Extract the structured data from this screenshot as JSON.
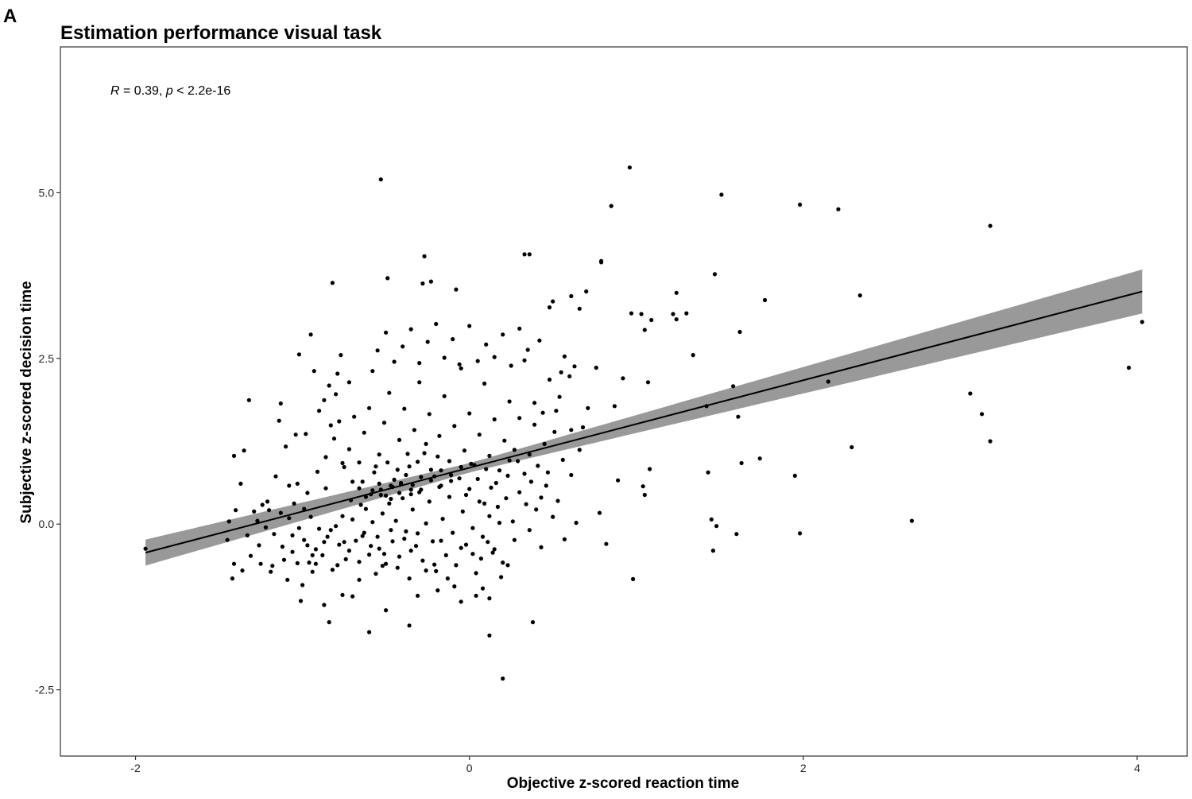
{
  "panel_label": "A",
  "chart_data": {
    "type": "scatter",
    "title": "Estimation performance visual task",
    "xlabel": "Objective z-scored reaction time",
    "ylabel": "Subjective z-scored decision time",
    "xlim": [
      -2.45,
      4.3
    ],
    "ylim": [
      -3.5,
      7.2
    ],
    "x_ticks": [
      -2,
      0,
      2,
      4
    ],
    "x_tick_labels": [
      "-2",
      "0",
      "2",
      "4"
    ],
    "y_ticks": [
      -2.5,
      0,
      2.5,
      5
    ],
    "y_tick_labels": [
      "-2.5",
      "0.0",
      "2.5",
      "5.0"
    ],
    "annotation": {
      "r_symbol": "R",
      "r_text": " = 0.39, ",
      "p_symbol": "p",
      "p_text": " < 2.2e-16"
    },
    "grid": false,
    "regression": {
      "x_range": [
        -1.94,
        4.03
      ],
      "intercept": 0.85,
      "slope": 0.66,
      "ci_halfwidth_at_mean": 0.07,
      "ci_growth": 0.065,
      "fill_color": "#999999",
      "line_color": "#000000"
    },
    "point_color": "#000000",
    "points": [
      [
        -1.94,
        -0.37
      ],
      [
        -0.53,
        5.2
      ],
      [
        0.96,
        5.38
      ],
      [
        0.85,
        4.8
      ],
      [
        1.51,
        4.97
      ],
      [
        1.98,
        4.82
      ],
      [
        2.21,
        4.75
      ],
      [
        3.12,
        4.5
      ],
      [
        -0.27,
        4.04
      ],
      [
        0.33,
        4.07
      ],
      [
        0.36,
        4.07
      ],
      [
        0.79,
        3.95
      ],
      [
        0.79,
        3.97
      ],
      [
        -0.82,
        3.64
      ],
      [
        -0.49,
        3.71
      ],
      [
        -0.28,
        3.63
      ],
      [
        -0.23,
        3.66
      ],
      [
        -0.08,
        3.54
      ],
      [
        1.24,
        3.49
      ],
      [
        1.47,
        3.77
      ],
      [
        1.77,
        3.38
      ],
      [
        2.34,
        3.45
      ],
      [
        4.03,
        3.05
      ],
      [
        3.95,
        2.36
      ],
      [
        0.48,
        3.27
      ],
      [
        0.5,
        3.36
      ],
      [
        0.61,
        3.44
      ],
      [
        0.7,
        3.51
      ],
      [
        0.66,
        3.25
      ],
      [
        0.97,
        3.18
      ],
      [
        1.03,
        3.17
      ],
      [
        1.22,
        3.17
      ],
      [
        1.24,
        3.09
      ],
      [
        1.3,
        3.18
      ],
      [
        1.09,
        3.08
      ],
      [
        1.05,
        2.93
      ],
      [
        1.62,
        2.9
      ],
      [
        1.34,
        2.55
      ],
      [
        1.58,
        2.08
      ],
      [
        2.15,
        2.15
      ],
      [
        1.61,
        1.62
      ],
      [
        1.63,
        0.92
      ],
      [
        1.74,
        0.99
      ],
      [
        1.42,
        1.78
      ],
      [
        1.43,
        0.78
      ],
      [
        1.45,
        0.07
      ],
      [
        1.48,
        -0.03
      ],
      [
        1.46,
        -0.4
      ],
      [
        1.6,
        -0.15
      ],
      [
        1.95,
        0.73
      ],
      [
        1.98,
        -0.14
      ],
      [
        2.29,
        1.16
      ],
      [
        2.65,
        0.05
      ],
      [
        3.0,
        1.97
      ],
      [
        3.07,
        1.66
      ],
      [
        3.12,
        1.25
      ],
      [
        0.98,
        -0.83
      ],
      [
        0.82,
        -0.3
      ],
      [
        0.78,
        0.17
      ],
      [
        0.89,
        0.66
      ],
      [
        0.87,
        1.78
      ],
      [
        1.04,
        0.57
      ],
      [
        1.05,
        0.44
      ],
      [
        1.08,
        0.83
      ],
      [
        0.92,
        2.2
      ],
      [
        1.07,
        2.14
      ],
      [
        0.76,
        2.36
      ],
      [
        0.6,
        2.23
      ],
      [
        0.55,
        2.29
      ],
      [
        0.63,
        2.38
      ],
      [
        -1.42,
        -0.82
      ],
      [
        -1.41,
        -0.6
      ],
      [
        -1.44,
        0.04
      ],
      [
        -1.45,
        -0.24
      ],
      [
        -1.4,
        0.21
      ],
      [
        -1.37,
        0.61
      ],
      [
        -1.41,
        1.03
      ],
      [
        -1.35,
        1.11
      ],
      [
        -1.32,
        1.87
      ],
      [
        -1.2,
        0.21
      ],
      [
        -1.14,
        1.56
      ],
      [
        -1.13,
        1.82
      ],
      [
        -1.1,
        1.17
      ],
      [
        -1.05,
        0.31
      ],
      [
        -1.04,
        1.35
      ],
      [
        -1.02,
        2.56
      ],
      [
        -0.98,
        1.36
      ],
      [
        -0.95,
        2.86
      ],
      [
        -0.93,
        2.31
      ],
      [
        -1.0,
        -0.92
      ],
      [
        -1.01,
        -1.16
      ],
      [
        -0.86,
        0.54
      ],
      [
        -0.86,
        1.01
      ],
      [
        -0.83,
        1.49
      ],
      [
        -0.8,
        1.96
      ],
      [
        -0.79,
        2.27
      ],
      [
        -0.77,
        2.55
      ],
      [
        -0.72,
        2.14
      ],
      [
        -0.84,
        -1.48
      ],
      [
        -0.87,
        -1.22
      ],
      [
        -0.76,
        -1.07
      ],
      [
        -0.7,
        -1.09
      ],
      [
        -0.6,
        -1.63
      ],
      [
        -0.52,
        -0.63
      ],
      [
        -0.5,
        -1.3
      ],
      [
        -0.36,
        -1.53
      ],
      [
        -0.31,
        -1.08
      ],
      [
        -0.26,
        -0.7
      ],
      [
        -0.19,
        -1.0
      ],
      [
        -0.09,
        -0.94
      ],
      [
        -0.05,
        -1.17
      ],
      [
        0.04,
        -1.08
      ],
      [
        0.08,
        -0.97
      ],
      [
        0.12,
        -1.12
      ],
      [
        0.12,
        -1.68
      ],
      [
        0.2,
        -2.33
      ],
      [
        0.38,
        -1.48
      ],
      [
        -1.31,
        -0.48
      ],
      [
        -1.25,
        -0.6
      ],
      [
        -1.19,
        -0.72
      ],
      [
        -1.12,
        -0.34
      ],
      [
        -1.09,
        -0.84
      ],
      [
        -1.06,
        -0.17
      ],
      [
        -0.99,
        -0.24
      ],
      [
        -0.96,
        -0.58
      ],
      [
        -0.94,
        -0.72
      ],
      [
        -0.92,
        -0.38
      ],
      [
        -0.9,
        -0.07
      ],
      [
        -0.88,
        -0.47
      ],
      [
        -0.85,
        -0.19
      ],
      [
        -0.82,
        -0.69
      ],
      [
        -0.8,
        -0.03
      ],
      [
        -0.78,
        -0.31
      ],
      [
        -0.76,
        0.12
      ],
      [
        -0.74,
        -0.53
      ],
      [
        -0.72,
        -0.4
      ],
      [
        -0.7,
        0.07
      ],
      [
        -0.68,
        -0.25
      ],
      [
        -0.66,
        -0.84
      ],
      [
        -0.64,
        -0.18
      ],
      [
        -0.62,
        0.23
      ],
      [
        -0.6,
        -0.46
      ],
      [
        -0.58,
        0.03
      ],
      [
        -0.56,
        -0.75
      ],
      [
        -0.54,
        -0.37
      ],
      [
        -0.52,
        0.16
      ],
      [
        -0.5,
        -0.6
      ],
      [
        -0.48,
        0.31
      ],
      [
        -0.46,
        -0.26
      ],
      [
        -0.44,
        0.05
      ],
      [
        -0.42,
        -0.49
      ],
      [
        -0.4,
        0.39
      ],
      [
        -0.38,
        -0.11
      ],
      [
        -0.36,
        -0.82
      ],
      [
        -0.34,
        0.22
      ],
      [
        -0.32,
        -0.33
      ],
      [
        -0.3,
        0.48
      ],
      [
        -0.28,
        -0.55
      ],
      [
        -0.26,
        0.01
      ],
      [
        -0.24,
        0.34
      ],
      [
        -0.22,
        -0.26
      ],
      [
        -0.2,
        -0.71
      ],
      [
        -0.18,
        0.56
      ],
      [
        -0.16,
        0.08
      ],
      [
        -0.14,
        -0.47
      ],
      [
        -0.12,
        0.41
      ],
      [
        -0.1,
        -0.13
      ],
      [
        -0.08,
        -0.62
      ],
      [
        -0.06,
        0.69
      ],
      [
        -0.04,
        0.19
      ],
      [
        -0.02,
        -0.31
      ],
      [
        0.0,
        0.53
      ],
      [
        0.02,
        -0.06
      ],
      [
        0.04,
        -0.74
      ],
      [
        0.06,
        0.34
      ],
      [
        0.08,
        -0.19
      ],
      [
        0.1,
        0.83
      ],
      [
        0.12,
        0.12
      ],
      [
        0.14,
        -0.43
      ],
      [
        0.16,
        0.62
      ],
      [
        0.18,
        0.02
      ],
      [
        0.2,
        -0.58
      ],
      [
        0.22,
        0.39
      ],
      [
        0.24,
        0.96
      ],
      [
        0.27,
        -0.24
      ],
      [
        0.3,
        0.48
      ],
      [
        0.33,
        0.76
      ],
      [
        0.36,
        -0.09
      ],
      [
        0.4,
        0.22
      ],
      [
        0.43,
        -0.35
      ],
      [
        0.46,
        0.58
      ],
      [
        0.5,
        0.11
      ],
      [
        0.53,
        0.35
      ],
      [
        0.57,
        -0.23
      ],
      [
        0.61,
        0.74
      ],
      [
        0.64,
        0.02
      ],
      [
        0.68,
        1.46
      ],
      [
        -0.9,
        1.71
      ],
      [
        -0.87,
        1.87
      ],
      [
        -0.84,
        2.09
      ],
      [
        -0.81,
        1.29
      ],
      [
        -0.78,
        1.55
      ],
      [
        -0.75,
        0.86
      ],
      [
        -0.72,
        1.13
      ],
      [
        -0.69,
        1.62
      ],
      [
        -0.66,
        0.93
      ],
      [
        -0.63,
        1.38
      ],
      [
        -0.6,
        1.75
      ],
      [
        -0.57,
        0.78
      ],
      [
        -0.54,
        1.05
      ],
      [
        -0.51,
        1.53
      ],
      [
        -0.48,
        1.98
      ],
      [
        -0.45,
        0.67
      ],
      [
        -0.42,
        1.27
      ],
      [
        -0.39,
        1.74
      ],
      [
        -0.36,
        0.87
      ],
      [
        -0.33,
        1.42
      ],
      [
        -0.3,
        2.14
      ],
      [
        -0.27,
        1.07
      ],
      [
        -0.24,
        1.66
      ],
      [
        -0.21,
        0.72
      ],
      [
        -0.18,
        1.33
      ],
      [
        -0.15,
        1.93
      ],
      [
        -0.12,
        0.95
      ],
      [
        -0.09,
        1.48
      ],
      [
        -0.06,
        2.41
      ],
      [
        -0.03,
        1.11
      ],
      [
        0.0,
        1.67
      ],
      [
        0.03,
        0.89
      ],
      [
        0.06,
        1.35
      ],
      [
        0.09,
        2.12
      ],
      [
        0.12,
        1.03
      ],
      [
        0.15,
        1.58
      ],
      [
        0.18,
        0.81
      ],
      [
        0.21,
        1.26
      ],
      [
        0.24,
        1.85
      ],
      [
        0.27,
        1.12
      ],
      [
        0.3,
        1.6
      ],
      [
        0.33,
        2.47
      ],
      [
        0.36,
        1.05
      ],
      [
        0.39,
        1.83
      ],
      [
        0.42,
        2.77
      ],
      [
        0.45,
        1.21
      ],
      [
        0.48,
        2.18
      ],
      [
        0.51,
        1.39
      ],
      [
        0.54,
        1.92
      ],
      [
        0.57,
        2.53
      ],
      [
        -0.58,
        2.31
      ],
      [
        -0.55,
        2.62
      ],
      [
        -0.5,
        2.89
      ],
      [
        -0.45,
        2.45
      ],
      [
        -0.4,
        2.68
      ],
      [
        -0.35,
        2.94
      ],
      [
        -0.3,
        2.43
      ],
      [
        -0.25,
        2.75
      ],
      [
        -0.2,
        3.02
      ],
      [
        -0.15,
        2.51
      ],
      [
        -0.1,
        2.79
      ],
      [
        -0.05,
        2.35
      ],
      [
        0.0,
        2.99
      ],
      [
        0.05,
        2.46
      ],
      [
        0.1,
        2.71
      ],
      [
        0.15,
        2.52
      ],
      [
        0.2,
        2.86
      ],
      [
        0.25,
        2.39
      ],
      [
        0.3,
        2.95
      ],
      [
        0.35,
        2.63
      ],
      [
        -0.53,
        0.44
      ],
      [
        -0.47,
        0.58
      ],
      [
        -0.41,
        0.62
      ],
      [
        -0.35,
        0.52
      ],
      [
        -0.29,
        0.71
      ],
      [
        -0.23,
        0.66
      ],
      [
        -0.17,
        0.81
      ],
      [
        -0.11,
        0.74
      ],
      [
        -0.05,
        0.86
      ],
      [
        0.01,
        0.91
      ],
      [
        -0.65,
        0.29
      ],
      [
        -0.59,
        0.45
      ],
      [
        -0.53,
        0.52
      ],
      [
        -0.47,
        0.38
      ],
      [
        -0.41,
        0.6
      ],
      [
        -0.35,
        0.45
      ],
      [
        -0.29,
        0.52
      ],
      [
        -0.23,
        0.82
      ],
      [
        -0.17,
        0.58
      ],
      [
        -0.11,
        0.65
      ],
      [
        -0.97,
        0.47
      ],
      [
        -1.08,
        0.58
      ],
      [
        -1.16,
        0.72
      ],
      [
        -1.21,
        0.34
      ],
      [
        -1.27,
        0.05
      ],
      [
        -1.33,
        -0.17
      ],
      [
        -1.36,
        -0.7
      ],
      [
        -1.03,
        0.61
      ],
      [
        -0.95,
        0.11
      ],
      [
        -0.91,
        0.79
      ],
      [
        -0.7,
        0.64
      ],
      [
        -0.66,
        0.54
      ],
      [
        -0.62,
        0.41
      ],
      [
        -0.58,
        0.51
      ],
      [
        -0.54,
        0.61
      ],
      [
        -0.5,
        0.43
      ],
      [
        -0.46,
        0.56
      ],
      [
        -0.42,
        0.47
      ],
      [
        -0.38,
        0.74
      ],
      [
        -0.34,
        0.59
      ],
      [
        -0.76,
        0.92
      ],
      [
        -0.71,
        0.36
      ],
      [
        -0.64,
        0.64
      ],
      [
        -0.56,
        0.87
      ],
      [
        -0.49,
        0.93
      ],
      [
        -0.43,
        0.82
      ],
      [
        -0.37,
        1.06
      ],
      [
        -0.31,
        0.94
      ],
      [
        -0.26,
        1.21
      ],
      [
        -0.19,
        1.02
      ],
      [
        -0.02,
        0.44
      ],
      [
        0.05,
        0.68
      ],
      [
        0.09,
        0.31
      ],
      [
        0.13,
        0.55
      ],
      [
        0.17,
        0.26
      ],
      [
        0.23,
        0.73
      ],
      [
        0.26,
        0.04
      ],
      [
        0.29,
        0.95
      ],
      [
        0.34,
        0.3
      ],
      [
        0.41,
        0.88
      ],
      [
        -0.05,
        -0.36
      ],
      [
        0.02,
        -0.45
      ],
      [
        0.07,
        -0.52
      ],
      [
        0.11,
        -0.27
      ],
      [
        0.15,
        -0.38
      ],
      [
        0.19,
        -0.8
      ],
      [
        0.23,
        -0.62
      ],
      [
        -0.13,
        -0.82
      ],
      [
        -0.17,
        -0.25
      ],
      [
        -0.21,
        -0.61
      ],
      [
        -0.66,
        -0.57
      ],
      [
        -0.63,
        -0.13
      ],
      [
        -0.59,
        -0.33
      ],
      [
        -0.55,
        -0.19
      ],
      [
        -0.51,
        -0.45
      ],
      [
        -0.47,
        -0.09
      ],
      [
        -0.43,
        -0.66
      ],
      [
        -0.39,
        -0.22
      ],
      [
        -0.35,
        -0.4
      ],
      [
        -0.31,
        -0.14
      ],
      [
        -1.17,
        -0.15
      ],
      [
        -1.11,
        -0.54
      ],
      [
        -1.06,
        -0.42
      ],
      [
        -1.02,
        -0.06
      ],
      [
        -0.97,
        -0.32
      ],
      [
        -0.92,
        -0.6
      ],
      [
        -0.87,
        -0.27
      ],
      [
        -0.83,
        -0.09
      ],
      [
        -0.79,
        -0.62
      ],
      [
        -0.75,
        -0.27
      ],
      [
        -1.26,
        -0.32
      ],
      [
        -1.22,
        -0.05
      ],
      [
        -1.18,
        -0.63
      ],
      [
        -1.29,
        0.19
      ],
      [
        -1.24,
        0.29
      ],
      [
        -1.13,
        0.17
      ],
      [
        -1.08,
        0.09
      ],
      [
        -1.03,
        -0.59
      ],
      [
        -0.99,
        0.23
      ],
      [
        -0.94,
        -0.47
      ],
      [
        0.39,
        1.5
      ],
      [
        0.44,
        1.68
      ],
      [
        0.52,
        1.71
      ],
      [
        0.56,
        0.97
      ],
      [
        0.61,
        1.42
      ],
      [
        0.66,
        1.12
      ],
      [
        0.71,
        1.75
      ],
      [
        0.47,
        0.78
      ],
      [
        0.43,
        0.4
      ],
      [
        0.37,
        0.64
      ]
    ]
  }
}
